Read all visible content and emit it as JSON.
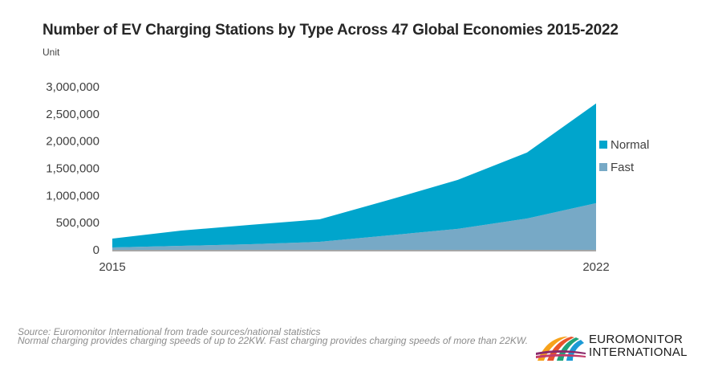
{
  "chart_data": {
    "type": "area",
    "stacked": true,
    "title": "Number of EV Charging Stations by Type Across 47 Global Economies 2015-2022",
    "subtitle": "Unit",
    "xlabel": "",
    "ylabel": "",
    "x": [
      2015,
      2016,
      2017,
      2018,
      2019,
      2020,
      2021,
      2022
    ],
    "x_tick_labels": [
      "2015",
      "2022"
    ],
    "y_ticks": [
      0,
      500000,
      1000000,
      1500000,
      2000000,
      2500000,
      3000000
    ],
    "y_tick_labels": [
      "0",
      "500,000",
      "1,000,000",
      "1,500,000",
      "2,000,000",
      "2,500,000",
      "3,000,000"
    ],
    "ylim": [
      0,
      3000000
    ],
    "grid": false,
    "legend_position": "right",
    "series": [
      {
        "name": "Fast",
        "color": "#77A9C6",
        "values": [
          44000,
          74000,
          104000,
          148000,
          266000,
          385000,
          577000,
          858000
        ]
      },
      {
        "name": "Normal",
        "color": "#00A5CC",
        "values": [
          163000,
          281000,
          356000,
          414000,
          651000,
          902000,
          1213000,
          1834000
        ]
      }
    ],
    "legend": [
      "Normal",
      "Fast"
    ]
  },
  "footer": {
    "source": "Source: Euromonitor International from trade sources/national statistics",
    "note": "Normal charging provides charging speeds of up to 22KW. Fast charging provides charging speeds of more than 22KW."
  },
  "logo": {
    "line1": "EUROMONITOR",
    "line2": "INTERNATIONAL"
  },
  "colors": {
    "normal": "#00A5CC",
    "fast": "#77A9C6",
    "axis": "#A6A6A6"
  }
}
